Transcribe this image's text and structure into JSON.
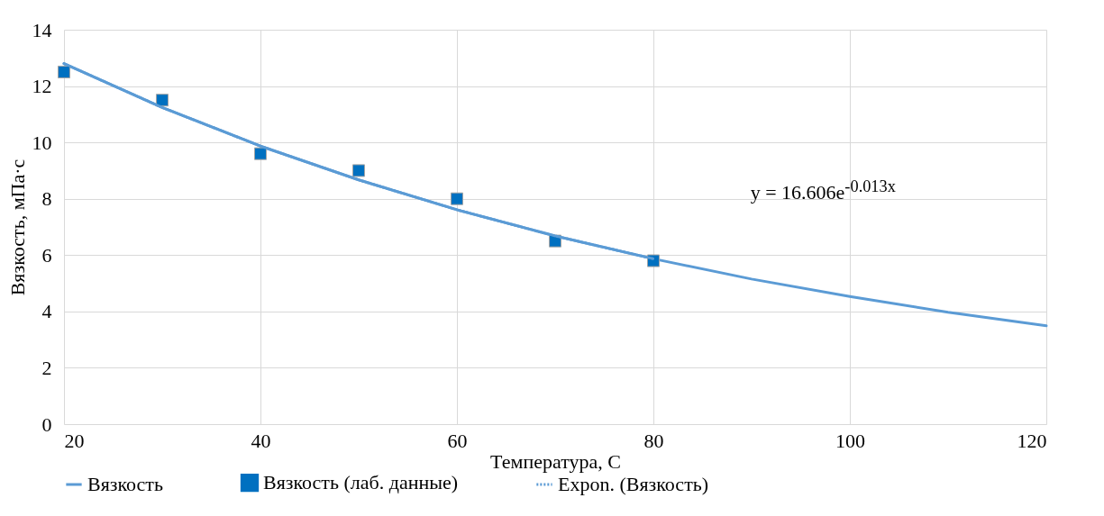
{
  "chart_data": {
    "type": "line",
    "xlabel": "Температура, С",
    "ylabel": "Вязкость, мПа·с",
    "xlim": [
      20,
      120
    ],
    "xticks": [
      20,
      40,
      60,
      80,
      100,
      120
    ],
    "ylim": [
      0,
      14
    ],
    "yticks": [
      0,
      2,
      4,
      6,
      8,
      10,
      12,
      14
    ],
    "grid": true,
    "legend": "bottom",
    "series": [
      {
        "name": "Вязкость",
        "color": "#5b9bd5",
        "line_style": "solid",
        "x": [
          20,
          30,
          40,
          50,
          60,
          70,
          80,
          90,
          100,
          110,
          120
        ],
        "values": [
          12.8,
          11.24,
          9.87,
          8.67,
          7.61,
          6.68,
          5.87,
          5.15,
          4.53,
          3.97,
          3.49
        ]
      },
      {
        "name": "Вязкость (лаб. данные)",
        "type": "scatter",
        "marker": "square",
        "color": "#0070c0",
        "x": [
          20,
          30,
          40,
          50,
          60,
          70,
          80
        ],
        "values": [
          12.5,
          11.5,
          9.6,
          9.0,
          8.0,
          6.5,
          5.8
        ]
      },
      {
        "name": "Expon. (Вязкость)",
        "color": "#5b9bd5",
        "line_style": "dotted",
        "x": [
          20,
          30,
          40,
          50,
          60,
          70,
          80
        ],
        "values": [
          12.8,
          11.24,
          9.87,
          8.67,
          7.61,
          6.68,
          5.87
        ]
      }
    ],
    "annotations": [
      "y = 16.606e$^{-0.013x}$"
    ]
  }
}
